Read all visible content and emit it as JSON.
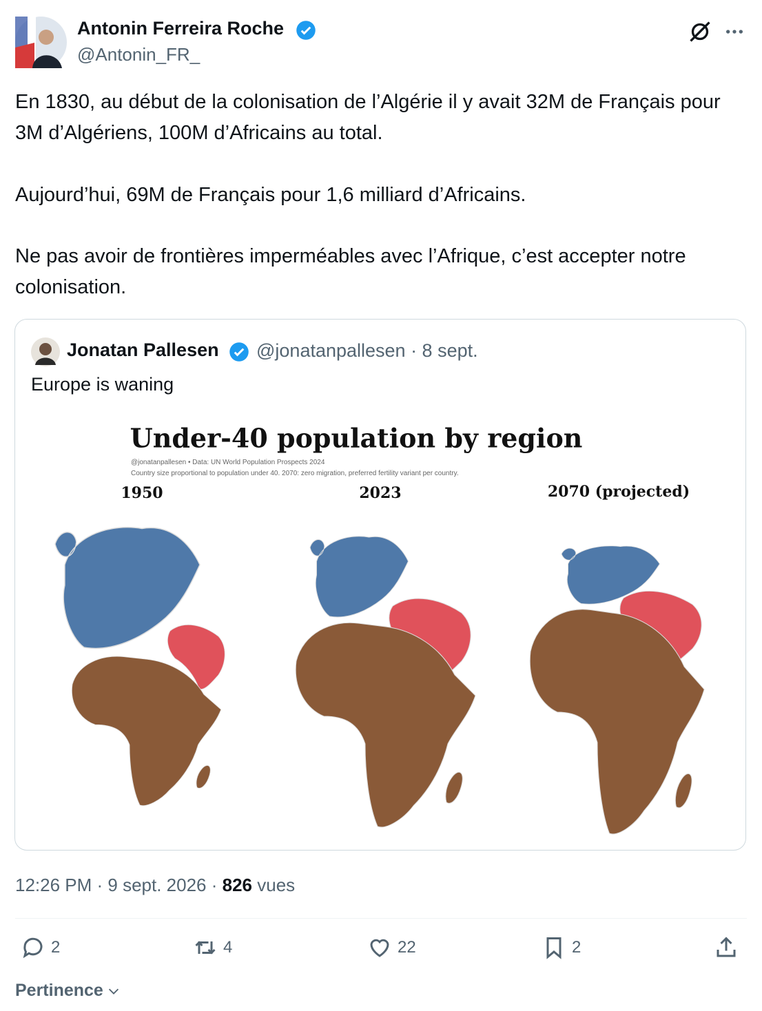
{
  "author": {
    "name": "Antonin Ferreira Roche",
    "handle": "@Antonin_FR_"
  },
  "body": [
    "En 1830, au début de la colonisation de l’Algérie il y avait 32M de Français pour 3M d’Algériens, 100M d’Africains au total.",
    "Aujourd’hui, 69M de Français pour 1,6 milliard d’Africains.",
    "Ne pas avoir de frontières imperméables avec l’Afrique, c’est accepter notre colonisation."
  ],
  "quote": {
    "name": "Jonatan Pallesen",
    "meta": "@jonatanpallesen · 8 sept.",
    "text": "Europe is waning",
    "image": {
      "title": "Under-40 population by region",
      "subtitle": [
        "@jonatanpallesen • Data: UN World Population Prospects 2024",
        "Country size proportional to population under 40. 2070: zero migration, preferred fertility variant per country."
      ],
      "panels": [
        "1950",
        "2023",
        "2070 (projected)"
      ]
    }
  },
  "timestamp": "12:26 PM · 9 sept. 2026 ·",
  "views": "826",
  "views_label": "vues",
  "actions": {
    "replies": "2",
    "reposts": "4",
    "likes": "22",
    "bookmarks": "2"
  },
  "sort": "Pertinence"
}
